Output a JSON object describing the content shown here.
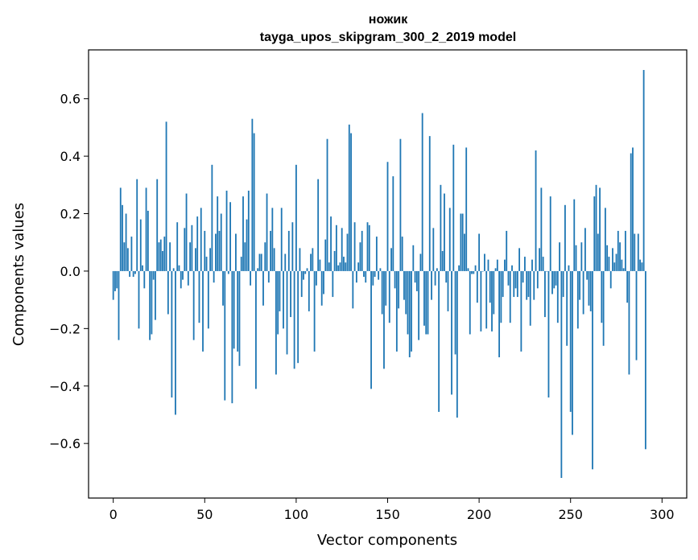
{
  "chart_data": {
    "type": "bar",
    "title": "ножик",
    "subtitle": "tayga_upos_skipgram_300_2_2019 model",
    "xlabel": "Vector components",
    "ylabel": "Components values",
    "xlim": [
      -13.5,
      313.5
    ],
    "ylim": [
      -0.79,
      0.77
    ],
    "xticks": [
      0,
      50,
      100,
      150,
      200,
      250,
      300
    ],
    "xtick_labels": [
      "0",
      "50",
      "100",
      "150",
      "200",
      "250",
      "300"
    ],
    "yticks": [
      -0.6,
      -0.4,
      -0.2,
      0.0,
      0.2,
      0.4,
      0.6
    ],
    "ytick_labels": [
      "−0.6",
      "−0.4",
      "−0.2",
      "0.0",
      "0.2",
      "0.4",
      "0.6"
    ],
    "bar_color": "#1f77b4",
    "values": [
      -0.1,
      -0.07,
      -0.06,
      -0.24,
      0.29,
      0.23,
      0.1,
      0.2,
      0.08,
      -0.02,
      0.12,
      -0.02,
      -0.01,
      0.32,
      -0.2,
      0.18,
      0.02,
      -0.06,
      0.29,
      0.21,
      -0.24,
      -0.22,
      -0.03,
      -0.17,
      0.32,
      0.1,
      0.11,
      0.07,
      0.12,
      0.52,
      -0.15,
      0.1,
      -0.44,
      0.01,
      -0.5,
      0.17,
      0.02,
      -0.06,
      -0.03,
      0.15,
      0.27,
      -0.05,
      0.1,
      0.16,
      -0.24,
      0.08,
      0.19,
      -0.18,
      0.22,
      -0.28,
      0.14,
      0.05,
      -0.2,
      0.08,
      0.37,
      -0.04,
      0.13,
      0.26,
      0.14,
      0.2,
      -0.12,
      -0.45,
      0.28,
      -0.01,
      0.24,
      -0.46,
      -0.27,
      0.13,
      -0.28,
      -0.33,
      0.05,
      0.26,
      0.1,
      0.18,
      0.28,
      -0.05,
      0.53,
      0.48,
      -0.41,
      0.01,
      0.06,
      0.06,
      -0.12,
      0.1,
      0.27,
      -0.04,
      0.14,
      0.22,
      0.08,
      -0.36,
      -0.22,
      -0.14,
      0.22,
      -0.2,
      0.06,
      -0.29,
      0.14,
      -0.16,
      0.17,
      -0.34,
      0.37,
      -0.32,
      0.08,
      -0.09,
      -0.03,
      -0.01,
      0.01,
      -0.14,
      0.06,
      0.08,
      -0.28,
      -0.05,
      0.32,
      0.04,
      -0.12,
      -0.08,
      0.11,
      0.46,
      0.03,
      0.19,
      -0.09,
      0.07,
      0.16,
      0.02,
      0.03,
      0.15,
      0.05,
      0.03,
      0.13,
      0.51,
      0.48,
      -0.13,
      0.17,
      -0.04,
      0.03,
      0.1,
      0.14,
      -0.02,
      -0.04,
      0.17,
      0.16,
      -0.41,
      -0.05,
      -0.02,
      0.12,
      -0.03,
      0.01,
      -0.15,
      -0.34,
      -0.12,
      0.38,
      -0.18,
      0.08,
      0.33,
      -0.06,
      -0.28,
      -0.13,
      0.46,
      0.12,
      -0.1,
      -0.15,
      -0.22,
      -0.3,
      -0.28,
      0.09,
      -0.04,
      -0.07,
      -0.24,
      0.06,
      0.55,
      -0.19,
      -0.22,
      -0.22,
      0.47,
      -0.1,
      0.15,
      -0.05,
      0.01,
      -0.49,
      0.3,
      0.07,
      0.27,
      -0.04,
      -0.14,
      0.22,
      -0.43,
      0.44,
      -0.29,
      -0.51,
      0.02,
      0.2,
      0.2,
      0.13,
      0.43,
      0.01,
      -0.22,
      -0.01,
      -0.01,
      0.02,
      -0.11,
      0.13,
      -0.21,
      0.0,
      0.06,
      -0.2,
      0.04,
      -0.11,
      -0.21,
      -0.15,
      0.01,
      0.04,
      -0.3,
      -0.18,
      -0.09,
      0.04,
      0.14,
      -0.05,
      -0.18,
      0.02,
      -0.09,
      -0.06,
      -0.09,
      0.08,
      -0.28,
      -0.04,
      0.05,
      -0.1,
      -0.09,
      -0.19,
      0.04,
      -0.1,
      0.42,
      -0.06,
      0.08,
      0.29,
      0.05,
      -0.16,
      0.0,
      -0.44,
      0.26,
      -0.08,
      -0.06,
      -0.05,
      -0.18,
      0.1,
      -0.72,
      -0.09,
      0.23,
      -0.26,
      0.02,
      -0.49,
      -0.57,
      0.25,
      0.09,
      -0.2,
      -0.1,
      0.1,
      -0.15,
      0.15,
      -0.03,
      -0.12,
      -0.14,
      -0.69,
      0.26,
      0.3,
      0.13,
      0.29,
      -0.18,
      -0.26,
      0.22,
      0.09,
      0.05,
      -0.06,
      0.08,
      0.03,
      0.06,
      0.14,
      0.1,
      0.04,
      0.01,
      0.14,
      -0.11,
      -0.36,
      0.41,
      0.43,
      0.13,
      -0.31,
      0.13,
      0.04,
      0.03,
      0.7,
      -0.62
    ]
  }
}
